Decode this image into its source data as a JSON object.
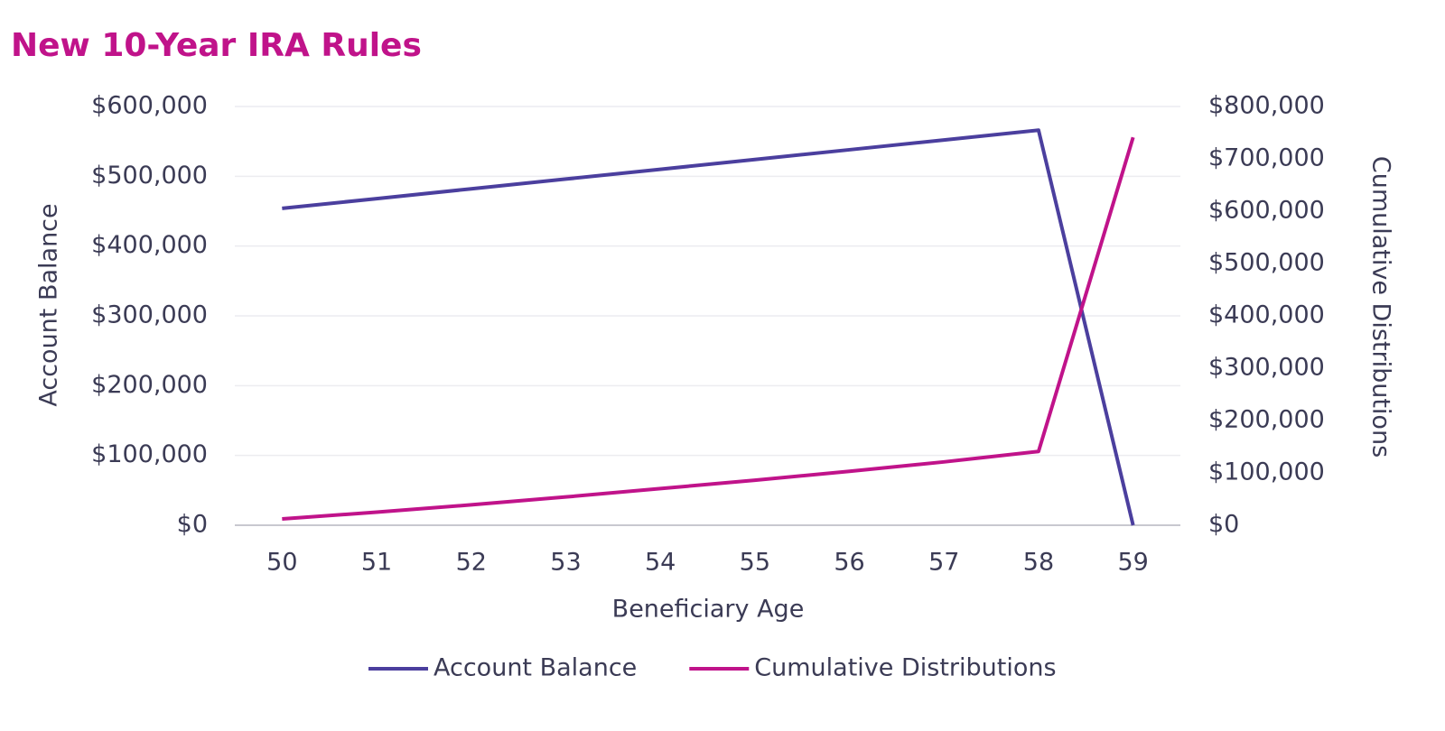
{
  "chart_data": {
    "type": "line",
    "title": "New 10-Year IRA Rules",
    "x_label": "Beneficiary Age",
    "y_label": "Account Balance",
    "y2_label": "Cumulative Distributions",
    "categories": [
      "50",
      "51",
      "52",
      "53",
      "54",
      "55",
      "56",
      "57",
      "58",
      "59"
    ],
    "series": [
      {
        "name": "Account Balance",
        "color": "#4b3f9e",
        "values": [
          454000,
          468000,
          482000,
          496000,
          510000,
          524000,
          538000,
          552000,
          566000,
          0
        ]
      },
      {
        "name": "Cumulative Distributions",
        "color": "#c0138a",
        "axis": "y2",
        "values": [
          12000,
          25000,
          39000,
          54000,
          70000,
          86000,
          103000,
          121000,
          141000,
          741000
        ]
      }
    ],
    "ylim": [
      0,
      600000
    ],
    "yticks": [
      {
        "value": 0,
        "label": "$0"
      },
      {
        "value": 100000,
        "label": "$100,000"
      },
      {
        "value": 200000,
        "label": "$200,000"
      },
      {
        "value": 300000,
        "label": "$300,000"
      },
      {
        "value": 400000,
        "label": "$400,000"
      },
      {
        "value": 500000,
        "label": "$500,000"
      },
      {
        "value": 600000,
        "label": "$600,000"
      }
    ],
    "y2lim": [
      0,
      800000
    ],
    "y2ticks": [
      {
        "value": 0,
        "label": "$0"
      },
      {
        "value": 100000,
        "label": "$100,000"
      },
      {
        "value": 200000,
        "label": "$200,000"
      },
      {
        "value": 300000,
        "label": "$300,000"
      },
      {
        "value": 400000,
        "label": "$400,000"
      },
      {
        "value": 500000,
        "label": "$500,000"
      },
      {
        "value": 600000,
        "label": "$600,000"
      },
      {
        "value": 700000,
        "label": "$700,000"
      },
      {
        "value": 800000,
        "label": "$800,000"
      }
    ],
    "grid": true,
    "legend": "bottom"
  }
}
